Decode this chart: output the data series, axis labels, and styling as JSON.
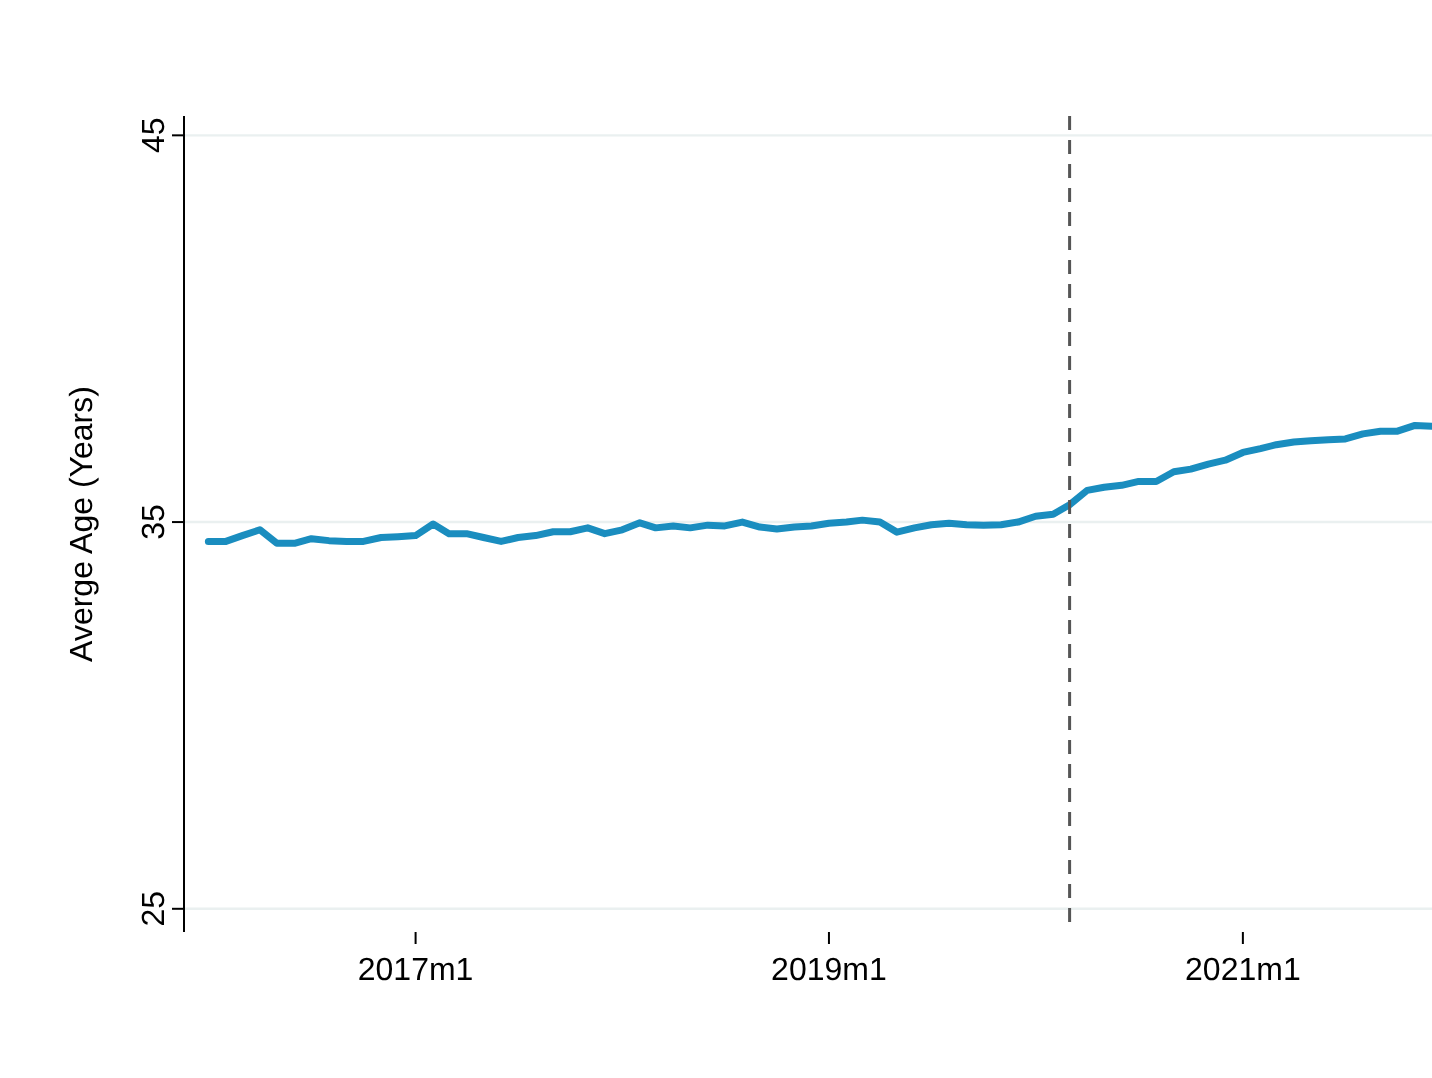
{
  "chart_data": {
    "type": "line",
    "ylabel": "Averge Age (Years)",
    "x": [
      "2016-01",
      "2016-02",
      "2016-03",
      "2016-04",
      "2016-05",
      "2016-06",
      "2016-07",
      "2016-08",
      "2016-09",
      "2016-10",
      "2016-11",
      "2016-12",
      "2017-01",
      "2017-02",
      "2017-03",
      "2017-04",
      "2017-05",
      "2017-06",
      "2017-07",
      "2017-08",
      "2017-09",
      "2017-10",
      "2017-11",
      "2017-12",
      "2018-01",
      "2018-02",
      "2018-03",
      "2018-04",
      "2018-05",
      "2018-06",
      "2018-07",
      "2018-08",
      "2018-09",
      "2018-10",
      "2018-11",
      "2018-12",
      "2019-01",
      "2019-02",
      "2019-03",
      "2019-04",
      "2019-05",
      "2019-06",
      "2019-07",
      "2019-08",
      "2019-09",
      "2019-10",
      "2019-11",
      "2019-12",
      "2020-01",
      "2020-02",
      "2020-03",
      "2020-04",
      "2020-05",
      "2020-06",
      "2020-07",
      "2020-08",
      "2020-09",
      "2020-10",
      "2020-11",
      "2020-12",
      "2021-01",
      "2021-02",
      "2021-03",
      "2021-04",
      "2021-05",
      "2021-06",
      "2021-07",
      "2021-08",
      "2021-09",
      "2021-10",
      "2021-11",
      "2021-12"
    ],
    "series": [
      {
        "color": "#1a8dbf",
        "values": [
          34.5,
          34.5,
          34.65,
          34.8,
          34.45,
          34.45,
          34.57,
          34.52,
          34.5,
          34.5,
          34.6,
          34.62,
          34.65,
          34.95,
          34.7,
          34.7,
          34.6,
          34.5,
          34.6,
          34.65,
          34.75,
          34.75,
          34.85,
          34.7,
          34.8,
          34.98,
          34.85,
          34.9,
          34.85,
          34.92,
          34.9,
          35.0,
          34.87,
          34.82,
          34.87,
          34.9,
          34.97,
          35.0,
          35.05,
          35.0,
          34.74,
          34.85,
          34.93,
          34.97,
          34.93,
          34.92,
          34.93,
          35.0,
          35.15,
          35.2,
          35.45,
          35.82,
          35.9,
          35.95,
          36.05,
          36.05,
          36.3,
          36.37,
          36.5,
          36.6,
          36.8,
          36.9,
          37.0,
          37.07,
          37.1,
          37.13,
          37.15,
          37.28,
          37.35,
          37.35,
          37.5,
          37.48
        ]
      }
    ],
    "xlim": [
      "2015-11-19",
      "2021-12-01"
    ],
    "xticks": [
      {
        "value": "2017-01",
        "label": "2017m1"
      },
      {
        "value": "2019-01",
        "label": "2019m1"
      },
      {
        "value": "2021-01",
        "label": "2021m1"
      }
    ],
    "ylim": [
      24.4,
      45.5
    ],
    "yticks": [
      25,
      35,
      45
    ],
    "grid": "y",
    "marker": "none",
    "line_style": "solid",
    "ref_lines": [
      {
        "axis": "x",
        "value": "2020-03",
        "color": "#555555",
        "line_style": "dashed"
      }
    ]
  }
}
